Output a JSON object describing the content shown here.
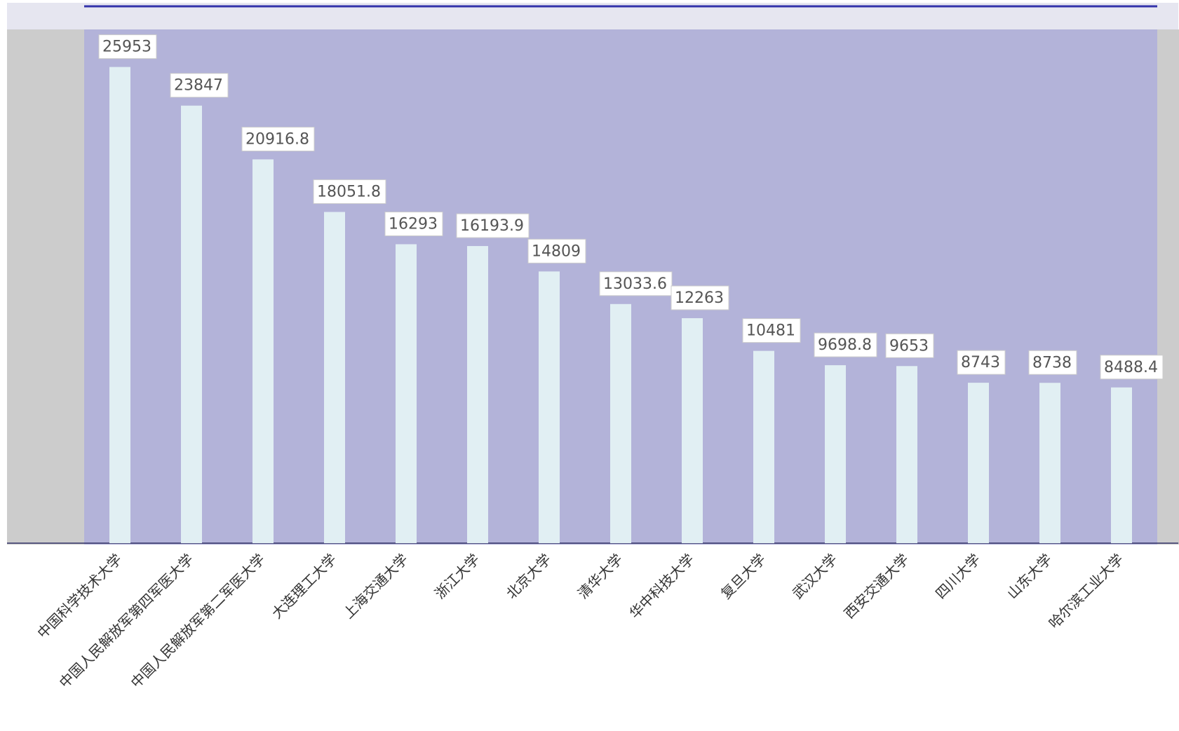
{
  "chart_data": {
    "type": "bar",
    "categories": [
      "中国科学技术大学",
      "中国人民解放军第四军医大学",
      "中国人民解放军第二军医大学",
      "大连理工大学",
      "上海交通大学",
      "浙江大学",
      "北京大学",
      "清华大学",
      "华中科技大学",
      "复旦大学",
      "武汉大学",
      "西安交通大学",
      "四川大学",
      "山东大学",
      "哈尔滨工业大学"
    ],
    "values": [
      25953,
      23847,
      20916.8,
      18051.8,
      16293,
      16193.9,
      14809,
      13033.6,
      12263,
      10481,
      9698.8,
      9653,
      8743,
      8738,
      8488.4
    ],
    "color": "#e1eff3",
    "ylim": [
      0,
      28000
    ]
  }
}
